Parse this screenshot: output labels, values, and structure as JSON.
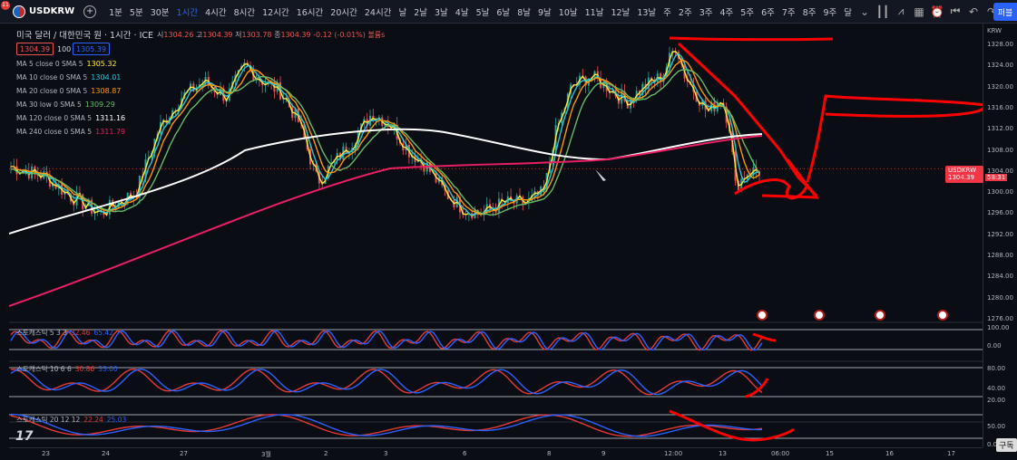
{
  "toolbar": {
    "notification_count": "11",
    "symbol": "USDKRW",
    "timeframes": [
      "1분",
      "5분",
      "30분",
      "1시간",
      "4시간",
      "8시간",
      "12시간",
      "16시간",
      "20시간",
      "24시간",
      "날",
      "2날",
      "3날",
      "4날",
      "5날",
      "6날",
      "8날",
      "9날",
      "10날",
      "11날",
      "12날",
      "13날",
      "주",
      "2주",
      "3주",
      "4주",
      "5주",
      "6주",
      "7주",
      "8주",
      "9주",
      "달"
    ],
    "active_timeframe": "1시간",
    "publish_label": "퍼블"
  },
  "header": {
    "title": "미국 달러 / 대한민국 원 · 1시간 · ICE",
    "o_label": "시",
    "o": "1304.26",
    "h_label": "고",
    "h": "1304.39",
    "l_label": "저",
    "l": "1303.78",
    "c_label": "종",
    "c": "1304.39",
    "change": "-0.12 (-0.01%)",
    "volume_label": "볼륨s",
    "bid": "1304.39",
    "spread": "100",
    "ask": "1305.39"
  },
  "ma_legend": [
    {
      "label": "MA 5 close 0 SMA 5",
      "value": "1305.32",
      "color": "#ffeb3b"
    },
    {
      "label": "MA 10 close 0 SMA 5",
      "value": "1304.01",
      "color": "#26c6da"
    },
    {
      "label": "MA 20 close 0 SMA 5",
      "value": "1308.87",
      "color": "#ff9800"
    },
    {
      "label": "MA 30 low 0 SMA 5",
      "value": "1309.29",
      "color": "#66bb6a"
    },
    {
      "label": "MA 120 close 0 SMA 5",
      "value": "1311.16",
      "color": "#ffffff"
    },
    {
      "label": "MA 240 close 0 SMA 5",
      "value": "1311.79",
      "color": "#e91e63"
    }
  ],
  "stochastics": [
    {
      "label": "스토캐스틱 5 3 3",
      "k": "32.46",
      "d": "65.42"
    },
    {
      "label": "스토캐스틱 10 6 6",
      "k": "30.86",
      "d": "33.00"
    },
    {
      "label": "스토캐스틱 20 12 12",
      "k": "22.24",
      "d": "25.03"
    }
  ],
  "price_axis": {
    "currency": "KRW",
    "ticks": [
      "1328.00",
      "1324.00",
      "1320.00",
      "1316.00",
      "1312.00",
      "1308.00",
      "1304.00",
      "1300.00",
      "1296.00",
      "1292.00",
      "1288.00",
      "1284.00",
      "1280.00",
      "1276.00"
    ],
    "stoch1_ticks": [
      "100.00",
      "0.00"
    ],
    "stoch2_ticks": [
      "80.00",
      "40.00",
      "20.00"
    ],
    "stoch3_ticks": [
      "50.00",
      "0.00"
    ],
    "last_symbol": "USDKRW",
    "last_price": "1304.39",
    "countdown": "58:31"
  },
  "time_axis": [
    "23",
    "24",
    "27",
    "3월",
    "2",
    "3",
    "6",
    "8",
    "9",
    "12:00",
    "13",
    "06:00",
    "15",
    "16",
    "17"
  ],
  "tv_logo": "17",
  "corner_button": "구독",
  "colors": {
    "up": "#26a69a",
    "down": "#ef5350",
    "stoch_k": "#2962ff",
    "stoch_d": "#e53935",
    "annotation": "#ff0000"
  }
}
